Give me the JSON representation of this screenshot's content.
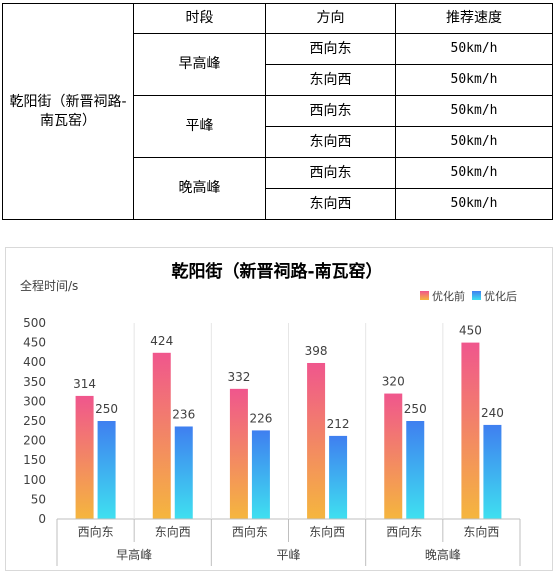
{
  "table": {
    "location": "乾阳街（新晋祠路-南瓦窑）",
    "headers": [
      "时段",
      "方向",
      "推荐速度"
    ],
    "rows": [
      {
        "period": "早高峰",
        "direction": "西向东",
        "speed": "50km/h"
      },
      {
        "period": "",
        "direction": "东向西",
        "speed": "50km/h"
      },
      {
        "period": "平峰",
        "direction": "西向东",
        "speed": "50km/h"
      },
      {
        "period": "",
        "direction": "东向西",
        "speed": "50km/h"
      },
      {
        "period": "晚高峰",
        "direction": "西向东",
        "speed": "50km/h"
      },
      {
        "period": "",
        "direction": "东向西",
        "speed": "50km/h"
      }
    ]
  },
  "chart_data": {
    "type": "bar",
    "title": "乾阳街（新晋祠路-南瓦窑）",
    "ylabel": "全程时间/s",
    "xlabel": "",
    "categories": [
      "西向东",
      "东向西",
      "西向东",
      "东向西",
      "西向东",
      "东向西"
    ],
    "groups": [
      "早高峰",
      "平峰",
      "晚高峰"
    ],
    "series": [
      {
        "name": "优化前",
        "values": [
          314,
          424,
          332,
          398,
          320,
          450
        ]
      },
      {
        "name": "优化后",
        "values": [
          250,
          236,
          226,
          212,
          250,
          240
        ]
      }
    ],
    "ylim": [
      0,
      500
    ],
    "yticks": [
      0,
      50,
      100,
      150,
      200,
      250,
      300,
      350,
      400,
      450,
      500
    ],
    "legend_position": "top-right",
    "grid": false,
    "colors": {
      "before_top": "#f0568d",
      "before_bottom": "#f5b63e",
      "after_top": "#3f7ff0",
      "after_bottom": "#3fe0f0"
    }
  }
}
